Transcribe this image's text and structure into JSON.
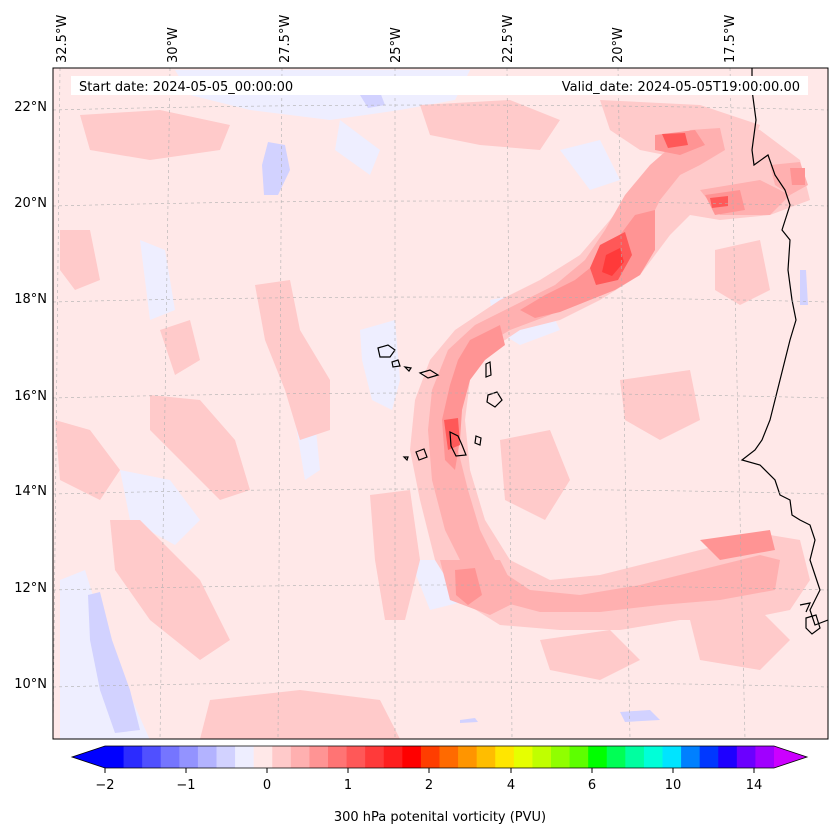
{
  "map": {
    "start_date": "Start date: 2024-05-05_00:00:00",
    "valid_date": "Valid_date: 2024-05-05T19:00:00.00",
    "lon_labels": [
      "32.5°W",
      "30°W",
      "27.5°W",
      "25°W",
      "22.5°W",
      "20°W",
      "17.5°W"
    ],
    "lat_labels": [
      "22°N",
      "20°N",
      "18°N",
      "16°N",
      "14°N",
      "12°N",
      "10°N"
    ],
    "gridlines": true
  },
  "colorbar": {
    "label": "300 hPa potenital vorticity (PVU)",
    "ticks": [
      "−2",
      "−1",
      "0",
      "1",
      "2",
      "4",
      "6",
      "10",
      "14"
    ],
    "extend": "both",
    "colors": [
      "#0000ff",
      "#2b2bff",
      "#5050ff",
      "#7575ff",
      "#9393ff",
      "#b3b3ff",
      "#d2d2ff",
      "#eeeeff",
      "#ffe8e8",
      "#ffcaca",
      "#ffb0b0",
      "#ff9494",
      "#ff7474",
      "#ff5858",
      "#ff3a3a",
      "#ff1e1e",
      "#ff0000",
      "#ff3d00",
      "#ff6a00",
      "#ff9500",
      "#ffbd00",
      "#ffe600",
      "#e6ff00",
      "#c0ff00",
      "#90ff00",
      "#5dff00",
      "#00ff00",
      "#00ff55",
      "#00ffa0",
      "#00ffd8",
      "#00e4ff",
      "#0080ff",
      "#0038ff",
      "#1e00ff",
      "#6b00ff",
      "#a000ff"
    ],
    "under_color": "#0000ff",
    "over_color": "#cc00ff"
  },
  "colors": {
    "background_field": "#ffe8e8",
    "weak_negative": "#eeeeff",
    "moderate_negative": "#d2d2ff",
    "weak_positive": "#ffcaca",
    "moderate_positive": "#ffb0b0",
    "strong_positive": "#ff9494",
    "max_positive": "#ff5858",
    "coastline": "#000000"
  }
}
